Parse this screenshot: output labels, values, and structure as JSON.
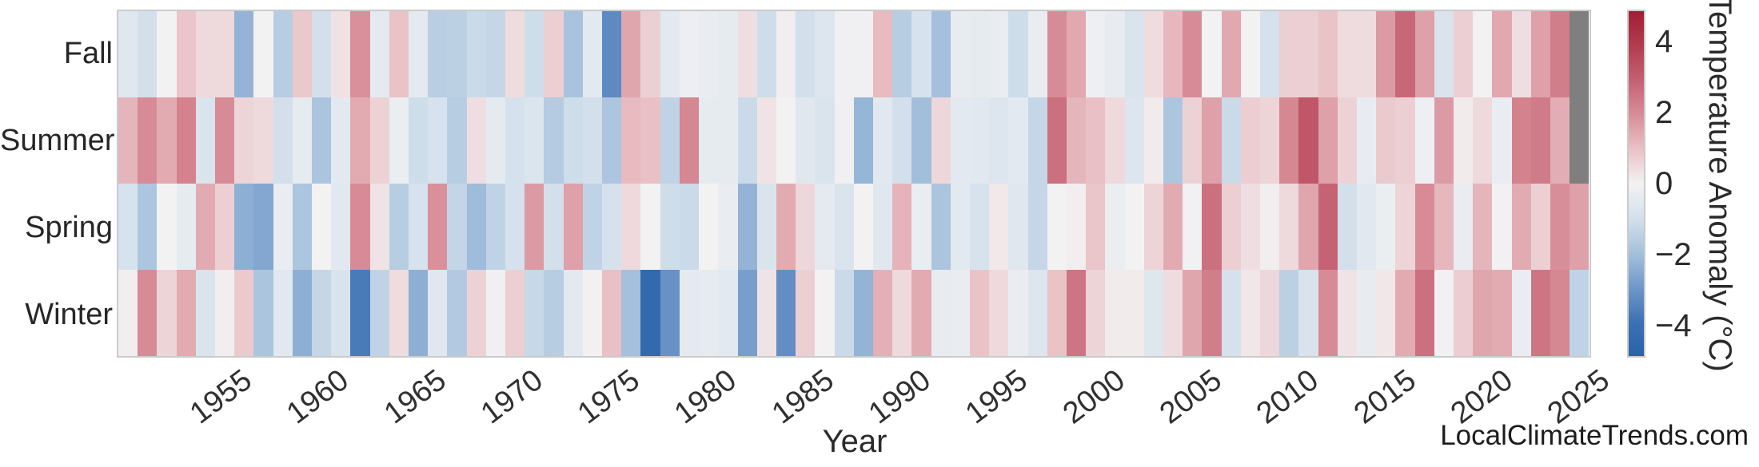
{
  "watermark": "LocalClimateTrends.com",
  "chart_data": {
    "type": "heatmap",
    "title": "",
    "xlabel": "Year",
    "row_labels": [
      "Fall",
      "Summer",
      "Spring",
      "Winter"
    ],
    "years": [
      1950,
      1951,
      1952,
      1953,
      1954,
      1955,
      1956,
      1957,
      1958,
      1959,
      1960,
      1961,
      1962,
      1963,
      1964,
      1965,
      1966,
      1967,
      1968,
      1969,
      1970,
      1971,
      1972,
      1973,
      1974,
      1975,
      1976,
      1977,
      1978,
      1979,
      1980,
      1981,
      1982,
      1983,
      1984,
      1985,
      1986,
      1987,
      1988,
      1989,
      1990,
      1991,
      1992,
      1993,
      1994,
      1995,
      1996,
      1997,
      1998,
      1999,
      2000,
      2001,
      2002,
      2003,
      2004,
      2005,
      2006,
      2007,
      2008,
      2009,
      2010,
      2011,
      2012,
      2013,
      2014,
      2015,
      2016,
      2017,
      2018,
      2019,
      2020,
      2021,
      2022,
      2023,
      2024,
      2025
    ],
    "series": [
      {
        "name": "Fall",
        "values": [
          -0.6,
          -1.0,
          0.0,
          0.9,
          0.5,
          0.5,
          -2.3,
          0.0,
          -1.6,
          0.85,
          -1.0,
          0.35,
          1.9,
          -0.45,
          0.95,
          -0.45,
          -1.55,
          -1.5,
          -1.2,
          -1.3,
          0.45,
          -1.1,
          0.7,
          -1.9,
          -0.5,
          -3.3,
          1.5,
          0.7,
          -0.5,
          -0.2,
          -0.3,
          -0.4,
          0.4,
          -1.1,
          0.1,
          -1.0,
          -0.7,
          -0.1,
          -0.1,
          1.1,
          -1.6,
          -0.9,
          -2.0,
          -0.35,
          -0.4,
          -0.3,
          -1.1,
          -0.3,
          2.0,
          1.45,
          -0.15,
          -0.35,
          -0.8,
          0.45,
          1.15,
          2.0,
          0.0,
          1.45,
          0.0,
          -0.95,
          0.7,
          0.7,
          0.95,
          0.45,
          0.45,
          1.7,
          2.8,
          1.6,
          -0.8,
          0.7,
          0.0,
          1.45,
          0.4,
          1.6,
          2.3,
          null
        ]
      },
      {
        "name": "Summer",
        "values": [
          1.2,
          2.0,
          1.4,
          2.2,
          -0.8,
          2.0,
          0.6,
          0.5,
          -1.0,
          -0.4,
          -1.85,
          -0.5,
          1.4,
          0.65,
          -0.25,
          -1.1,
          -0.9,
          -1.6,
          0.4,
          -0.45,
          -0.95,
          -0.75,
          -1.65,
          -1.1,
          -1.0,
          -1.8,
          1.1,
          1.0,
          -1.4,
          2.1,
          -0.4,
          -0.4,
          -1.2,
          0.3,
          0.0,
          -0.6,
          -0.8,
          -0.1,
          -2.25,
          -0.55,
          -1.0,
          -2.05,
          0.55,
          -0.5,
          -0.55,
          -0.7,
          -0.5,
          -1.3,
          2.6,
          1.2,
          1.0,
          0.5,
          -0.7,
          0.15,
          -1.8,
          0.65,
          1.6,
          -1.2,
          0.75,
          0.6,
          2.1,
          3.2,
          1.6,
          0.65,
          -0.35,
          0.8,
          0.7,
          -0.15,
          1.7,
          0.15,
          0.5,
          -0.3,
          2.2,
          2.35,
          1.35,
          null
        ]
      },
      {
        "name": "Spring",
        "values": [
          -0.9,
          -1.8,
          0.0,
          -0.4,
          1.4,
          0.7,
          -2.4,
          -2.6,
          -0.3,
          -1.8,
          0.0,
          -0.55,
          2.0,
          0.3,
          -1.6,
          -0.9,
          1.9,
          -1.35,
          -2.1,
          -1.4,
          -0.95,
          1.7,
          -1.0,
          1.6,
          -1.4,
          -0.95,
          0.5,
          0.0,
          -1.1,
          -1.2,
          0.0,
          -0.3,
          -2.3,
          -0.8,
          1.4,
          0.55,
          -0.45,
          -0.8,
          0.0,
          -0.6,
          1.25,
          -0.3,
          -1.85,
          -0.5,
          -0.9,
          0.2,
          -0.6,
          -1.3,
          0.0,
          0.1,
          0.9,
          -0.25,
          0.0,
          0.6,
          1.4,
          -0.05,
          2.6,
          0.7,
          0.4,
          0.1,
          0.5,
          1.5,
          2.9,
          -1.0,
          -0.55,
          -0.25,
          0.6,
          2.0,
          1.15,
          -0.3,
          1.2,
          0.05,
          1.4,
          0.7,
          1.95,
          1.6
        ]
      },
      {
        "name": "Winter",
        "values": [
          0.1,
          2.0,
          0.6,
          1.4,
          -0.8,
          0.1,
          0.8,
          -1.85,
          -0.55,
          -2.4,
          -1.3,
          -0.85,
          -3.7,
          -1.4,
          0.45,
          -2.4,
          -0.6,
          -1.7,
          0.65,
          -0.1,
          0.7,
          -1.25,
          -1.6,
          -0.5,
          0.05,
          1.0,
          -2.0,
          -4.4,
          -3.1,
          -0.45,
          -0.4,
          -0.5,
          -2.8,
          0.3,
          -3.2,
          0.7,
          0.0,
          -1.2,
          -2.3,
          1.3,
          0.5,
          1.4,
          -0.35,
          -0.3,
          0.95,
          0.5,
          -0.3,
          -0.7,
          0.95,
          2.5,
          0.6,
          0.15,
          0.15,
          -0.65,
          0.45,
          1.5,
          2.3,
          -0.95,
          0.25,
          0.55,
          -1.5,
          -0.85,
          2.0,
          0.3,
          -0.35,
          0.25,
          1.4,
          2.6,
          -0.05,
          0.75,
          1.5,
          1.4,
          -0.3,
          2.5,
          2.1,
          -1.4
        ]
      }
    ],
    "x_ticks": [
      "1955",
      "1960",
      "1965",
      "1970",
      "1975",
      "1980",
      "1985",
      "1990",
      "1995",
      "2000",
      "2005",
      "2010",
      "2015",
      "2020",
      "2025"
    ],
    "x_tick_years": [
      1955,
      1960,
      1965,
      1970,
      1975,
      1980,
      1985,
      1990,
      1995,
      2000,
      2005,
      2010,
      2015,
      2020,
      2025
    ],
    "colorbar": {
      "label": "Temperature Anomaly (°C)",
      "ticks": [
        "4",
        "2",
        "0",
        "−2",
        "−4"
      ],
      "tick_values": [
        4,
        2,
        0,
        -2,
        -4
      ],
      "vmin": -4.9,
      "vmax": 4.9
    },
    "missing_color": "#7f7f7f",
    "colormap_stops": [
      [
        -4.9,
        "#2a63a9"
      ],
      [
        -4.0,
        "#3a6fb2"
      ],
      [
        -3.0,
        "#6d96c8"
      ],
      [
        -2.0,
        "#a4c0dc"
      ],
      [
        -1.0,
        "#d3e0ec"
      ],
      [
        0.0,
        "#f3f2f3"
      ],
      [
        1.0,
        "#e9c0c5"
      ],
      [
        2.0,
        "#d78b96"
      ],
      [
        3.0,
        "#c35e70"
      ],
      [
        4.0,
        "#b03a4c"
      ],
      [
        4.9,
        "#a11d35"
      ]
    ],
    "grid": false,
    "legend_position": "right-colorbar"
  },
  "layout_note": "seasonal temperature anomaly heatmap"
}
